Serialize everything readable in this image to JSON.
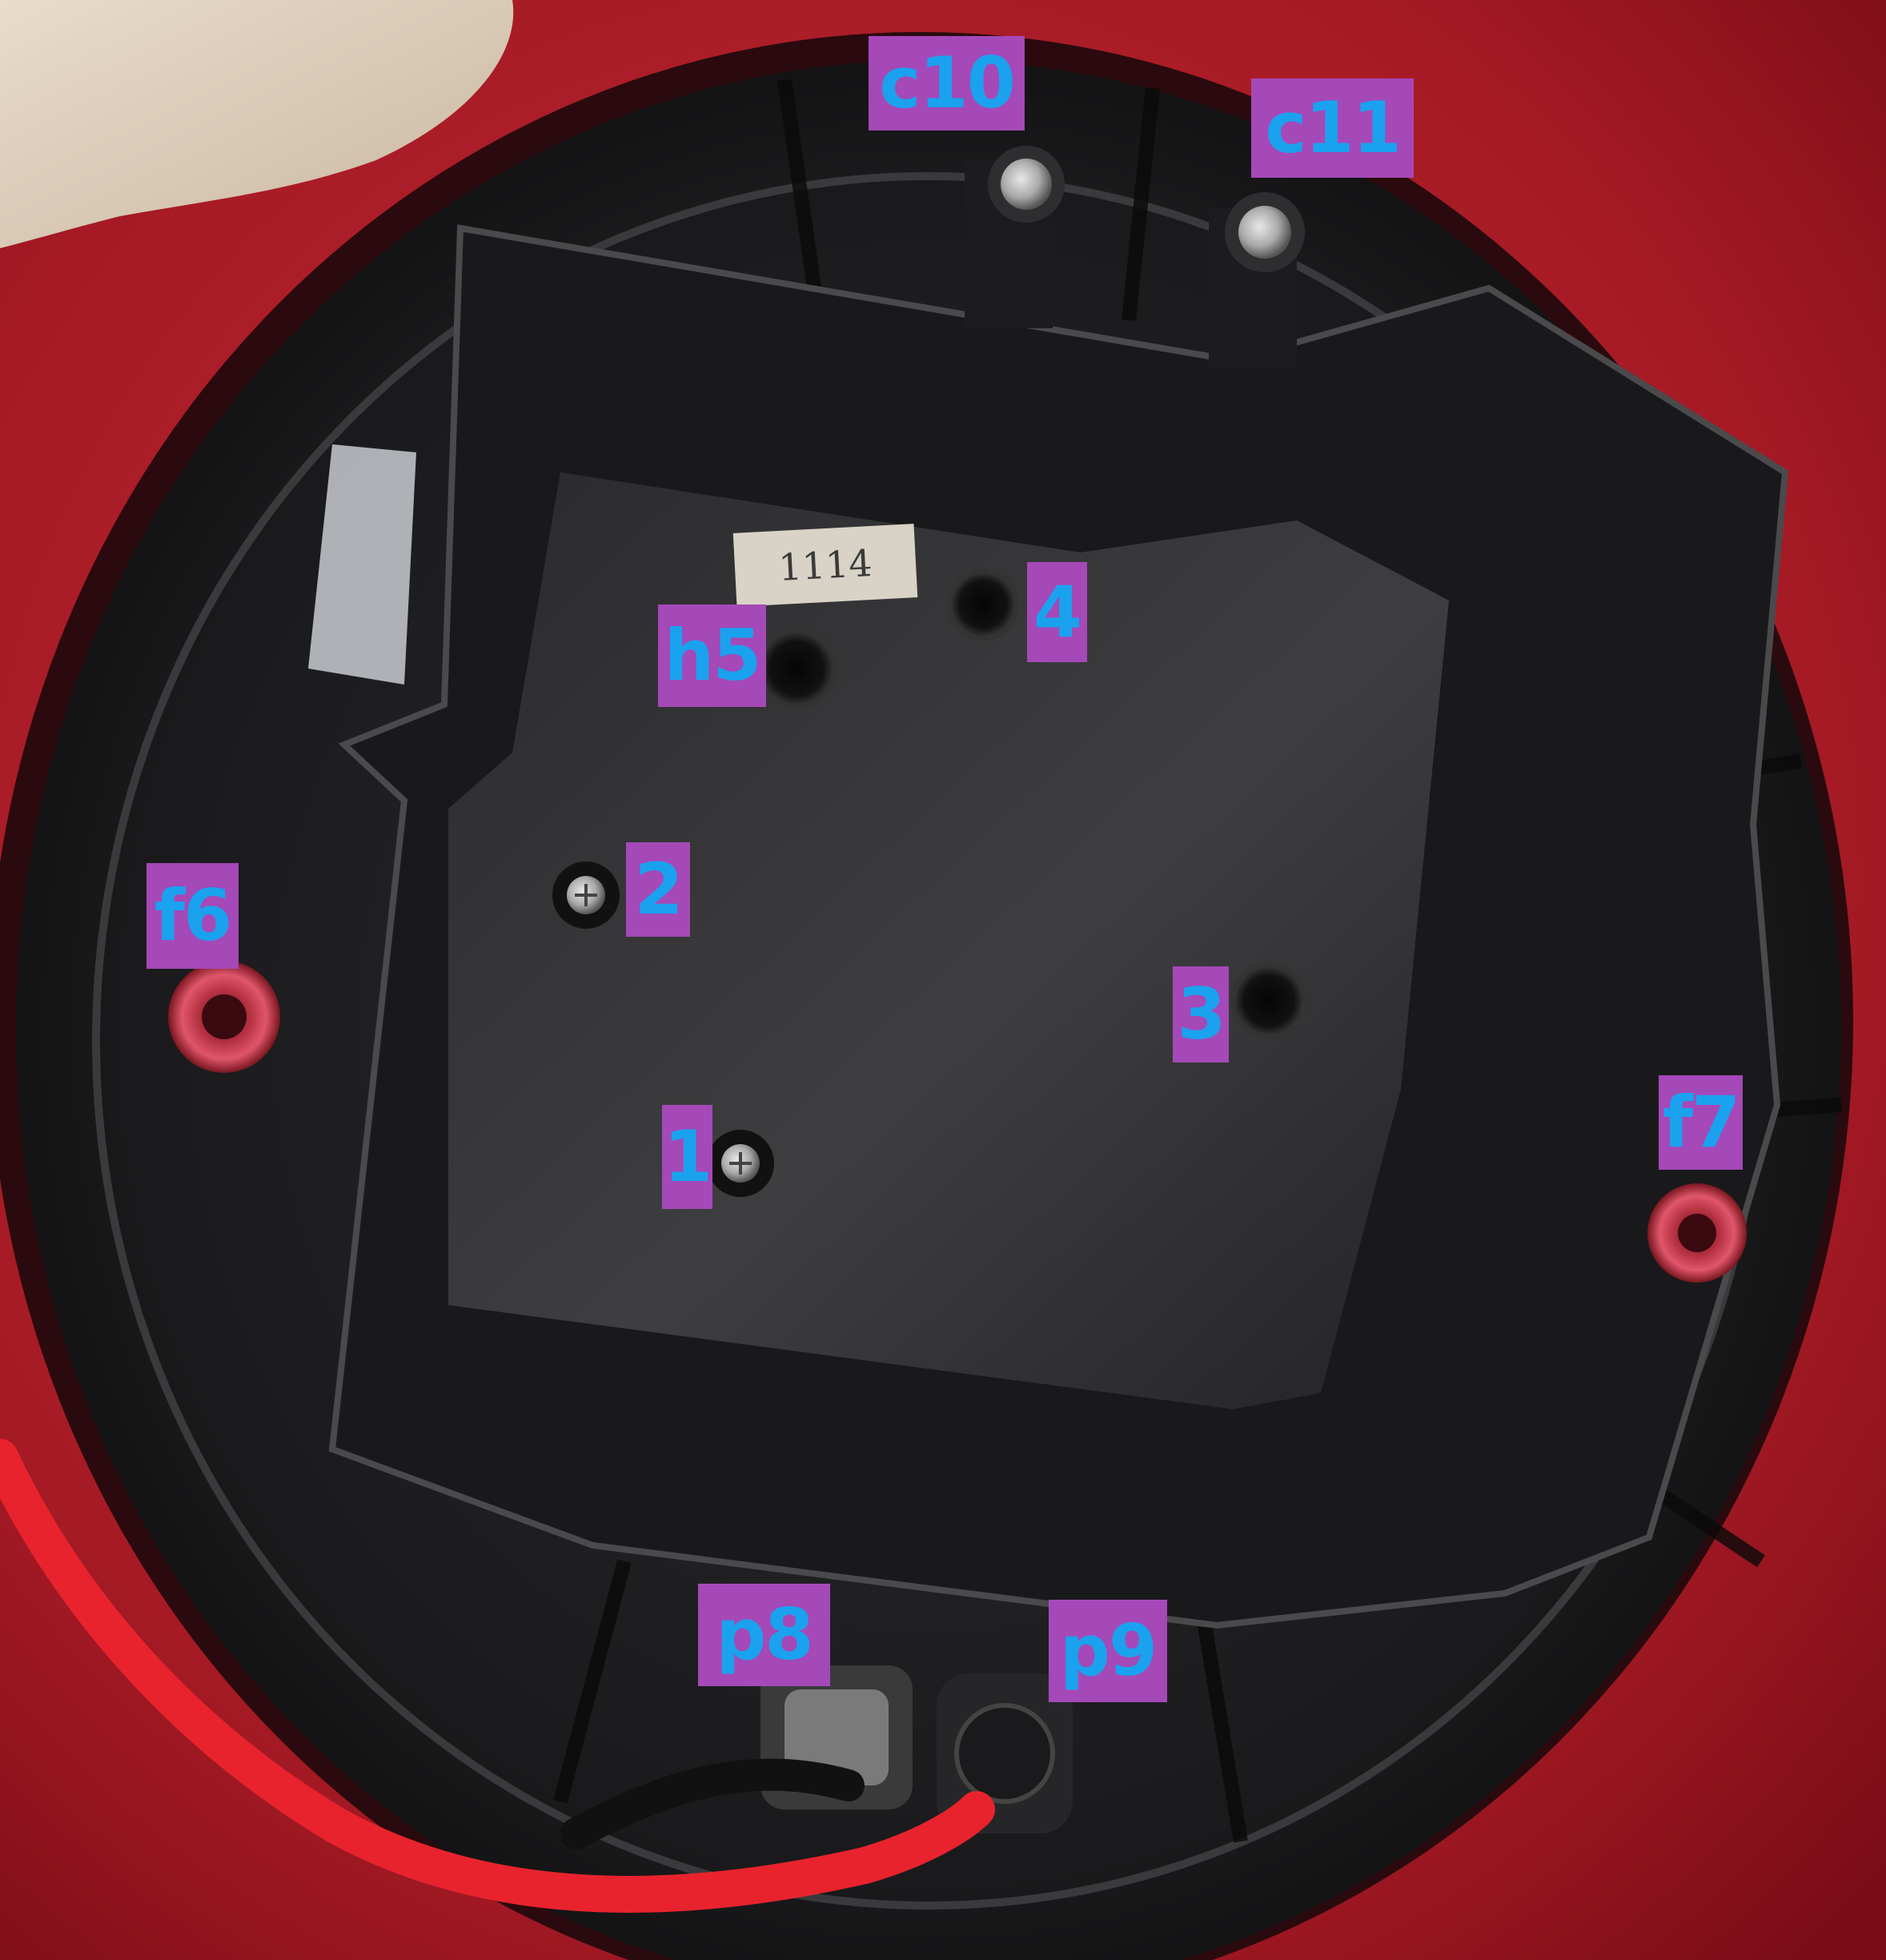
{
  "colors": {
    "label_background": "#a548b8",
    "label_text": "#1aa2ee",
    "housing_red": "#b3202a",
    "tray_black": "#1f1f21",
    "cable_red": "#e8232e"
  },
  "part_stamp": "1114",
  "labels": [
    {
      "id": "label-c10",
      "text": "c10"
    },
    {
      "id": "label-c11",
      "text": "c11"
    },
    {
      "id": "label-h5",
      "text": "h5"
    },
    {
      "id": "label-4",
      "text": "4"
    },
    {
      "id": "label-2",
      "text": "2"
    },
    {
      "id": "label-f6",
      "text": "f6"
    },
    {
      "id": "label-3",
      "text": "3"
    },
    {
      "id": "label-1",
      "text": "1"
    },
    {
      "id": "label-f7",
      "text": "f7"
    },
    {
      "id": "label-p8",
      "text": "p8"
    },
    {
      "id": "label-p9",
      "text": "p9"
    }
  ]
}
